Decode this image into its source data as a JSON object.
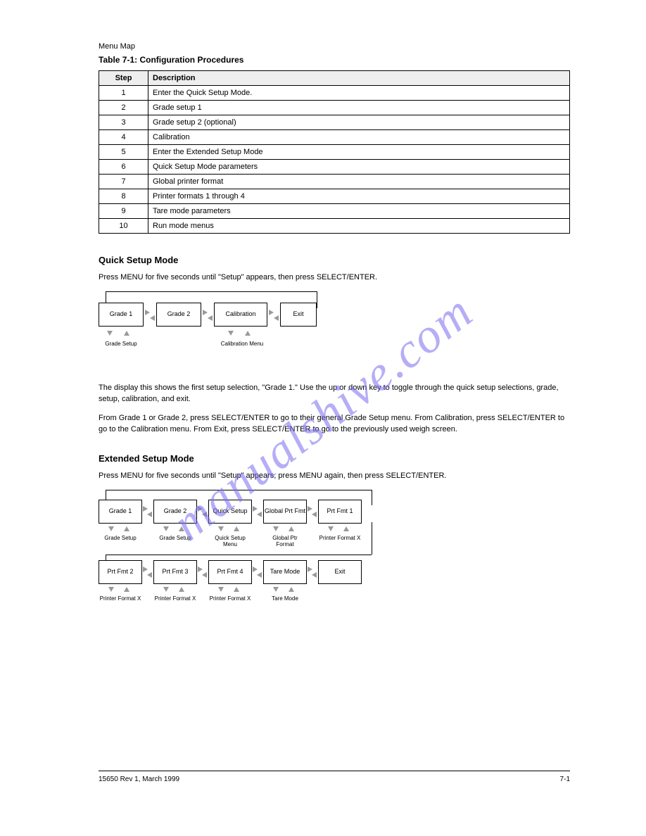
{
  "header": {
    "section_label": "Menu Map",
    "table_title": "Table 7-1: Configuration Procedures"
  },
  "table": {
    "columns": [
      "Step",
      "Description"
    ],
    "rows": [
      [
        "1",
        "Enter the Quick Setup Mode."
      ],
      [
        "2",
        "Grade setup 1"
      ],
      [
        "3",
        "Grade setup 2 (optional)"
      ],
      [
        "4",
        "Calibration"
      ],
      [
        "5",
        "Enter the Extended Setup Mode"
      ],
      [
        "6",
        "Quick Setup Mode parameters"
      ],
      [
        "7",
        "Global printer format"
      ],
      [
        "8",
        "Printer formats 1 through 4"
      ],
      [
        "9",
        "Tare mode parameters"
      ],
      [
        "10",
        "Run mode menus"
      ]
    ]
  },
  "quick": {
    "heading": "Quick Setup Mode",
    "intro": "Press MENU for five seconds until \"Setup\" appears, then press SELECT/ENTER.",
    "boxes": [
      "Grade 1",
      "Grade 2",
      "Calibration",
      "Exit"
    ],
    "below1": "Grade\nSetup",
    "below2": "Calibration\nMenu",
    "para1": "The display this shows the first setup selection, \"Grade 1.\" Use the up or down key to toggle through the quick setup selections, grade, setup, calibration, and exit.",
    "para2": "From Grade 1 or Grade 2, press SELECT/ENTER to go to their general Grade Setup menu. From Calibration, press SELECT/ENTER to go to the Calibration menu. From Exit, press SELECT/ENTER to go to the previously used weigh screen."
  },
  "extended": {
    "heading": "Extended Setup Mode",
    "intro": "Press MENU for five seconds until \"Setup\" appears, press MENU again, then press SELECT/ENTER.",
    "boxes": [
      "Grade 1",
      "Grade 2",
      "Quick Setup",
      "Global Prt Fmt",
      "Prt Fmt 1",
      "Prt Fmt 2",
      "Prt Fmt 3",
      "Prt Fmt 4",
      "Tare Mode",
      "Exit"
    ],
    "below": [
      "Grade\nSetup",
      "Grade\nSetup",
      "Quick Setup\nMenu",
      "Global Ptr\nFormat",
      "Printer\nFormat X",
      "Printer\nFormat X",
      "Printer\nFormat X",
      "Printer\nFormat X",
      "Tare\nMode"
    ]
  },
  "footer": {
    "left": "15650 Rev 1, March 1999",
    "right": "7-1"
  },
  "watermark": "manualshive.com"
}
